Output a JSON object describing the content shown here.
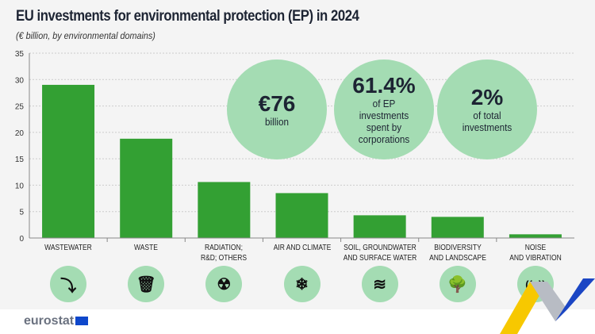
{
  "title": "EU investments for environmental protection (EP) in 2024",
  "subtitle": "(€ billion, by environmental domains)",
  "chart_data": {
    "type": "bar",
    "categories": [
      "WASTEWATER",
      "WASTE",
      "RADIATION;\nR&D; OTHERS",
      "AIR AND CLIMATE",
      "SOIL, GROUNDWATER\nAND SURFACE WATER",
      "BIODIVERSITY\nAND LANDSCAPE",
      "NOISE\nAND VIBRATION"
    ],
    "values": [
      29.0,
      18.8,
      10.6,
      8.5,
      4.3,
      4.0,
      0.7
    ],
    "ylim": [
      0,
      35
    ],
    "yticks": [
      0,
      5,
      10,
      15,
      20,
      25,
      30,
      35
    ],
    "grid": true,
    "bar_color": "#33a033"
  },
  "highlights": [
    {
      "big": "€76",
      "small": "billion"
    },
    {
      "big": "61.4%",
      "small": "of EP investments spent by corporations"
    },
    {
      "big": "2%",
      "small": "of total investments"
    }
  ],
  "icons": [
    "wastewater-pipe-icon",
    "trash-bin-icon",
    "radiation-icon",
    "snowflake-sun-icon",
    "water-waves-icon",
    "trees-landscape-icon",
    "noise-vibration-icon"
  ],
  "logo": "eurostat"
}
